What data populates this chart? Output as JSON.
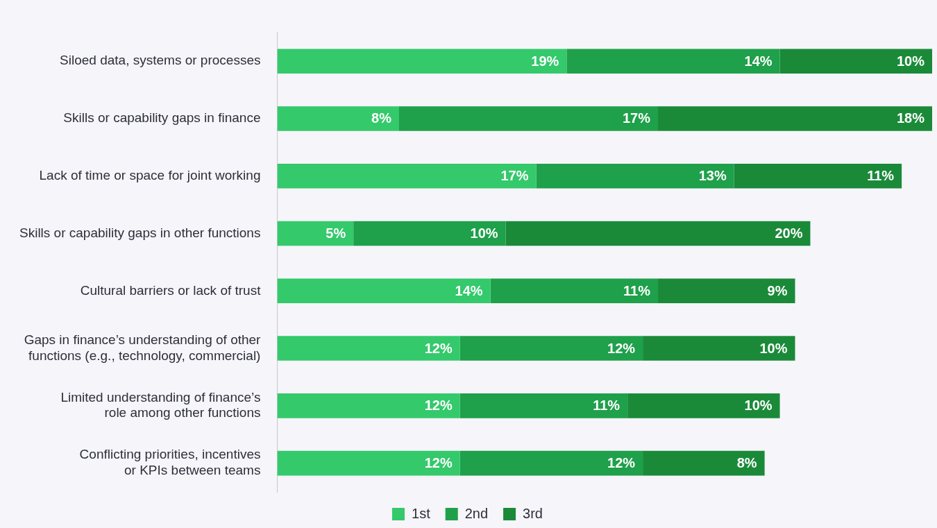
{
  "chart_data": {
    "type": "bar",
    "orientation": "horizontal",
    "stacked": true,
    "tick_labels": "y",
    "legend": "bottom",
    "categories": [
      "Siloed data, systems or processes",
      "Skills or capability gaps in finance",
      "Lack of time or space for joint working",
      "Skills or capability gaps in other functions",
      "Cultural barriers or lack of trust",
      "Gaps in finance’s understanding of other functions (e.g., technology, commercial)",
      "Limited understanding of finance’s role among other functions",
      "Conflicting priorities, incentives or KPIs between teams"
    ],
    "series": [
      {
        "name": "1st",
        "color": "#34c96b",
        "values": [
          19,
          8,
          17,
          5,
          14,
          12,
          12,
          12
        ],
        "value_labels": [
          "19%",
          "8%",
          "17%",
          "5%",
          "14%",
          "12%",
          "12%",
          "12%"
        ]
      },
      {
        "name": "2nd",
        "color": "#1fa04a",
        "values": [
          14,
          17,
          13,
          10,
          11,
          12,
          11,
          12
        ],
        "value_labels": [
          "14%",
          "17%",
          "13%",
          "10%",
          "11%",
          "12%",
          "11%",
          "12%"
        ]
      },
      {
        "name": "3rd",
        "color": "#1a8a39",
        "values": [
          10,
          18,
          11,
          20,
          9,
          10,
          10,
          8
        ],
        "value_labels": [
          "10%",
          "18%",
          "11%",
          "20%",
          "9%",
          "10%",
          "10%",
          "8%"
        ]
      }
    ]
  }
}
